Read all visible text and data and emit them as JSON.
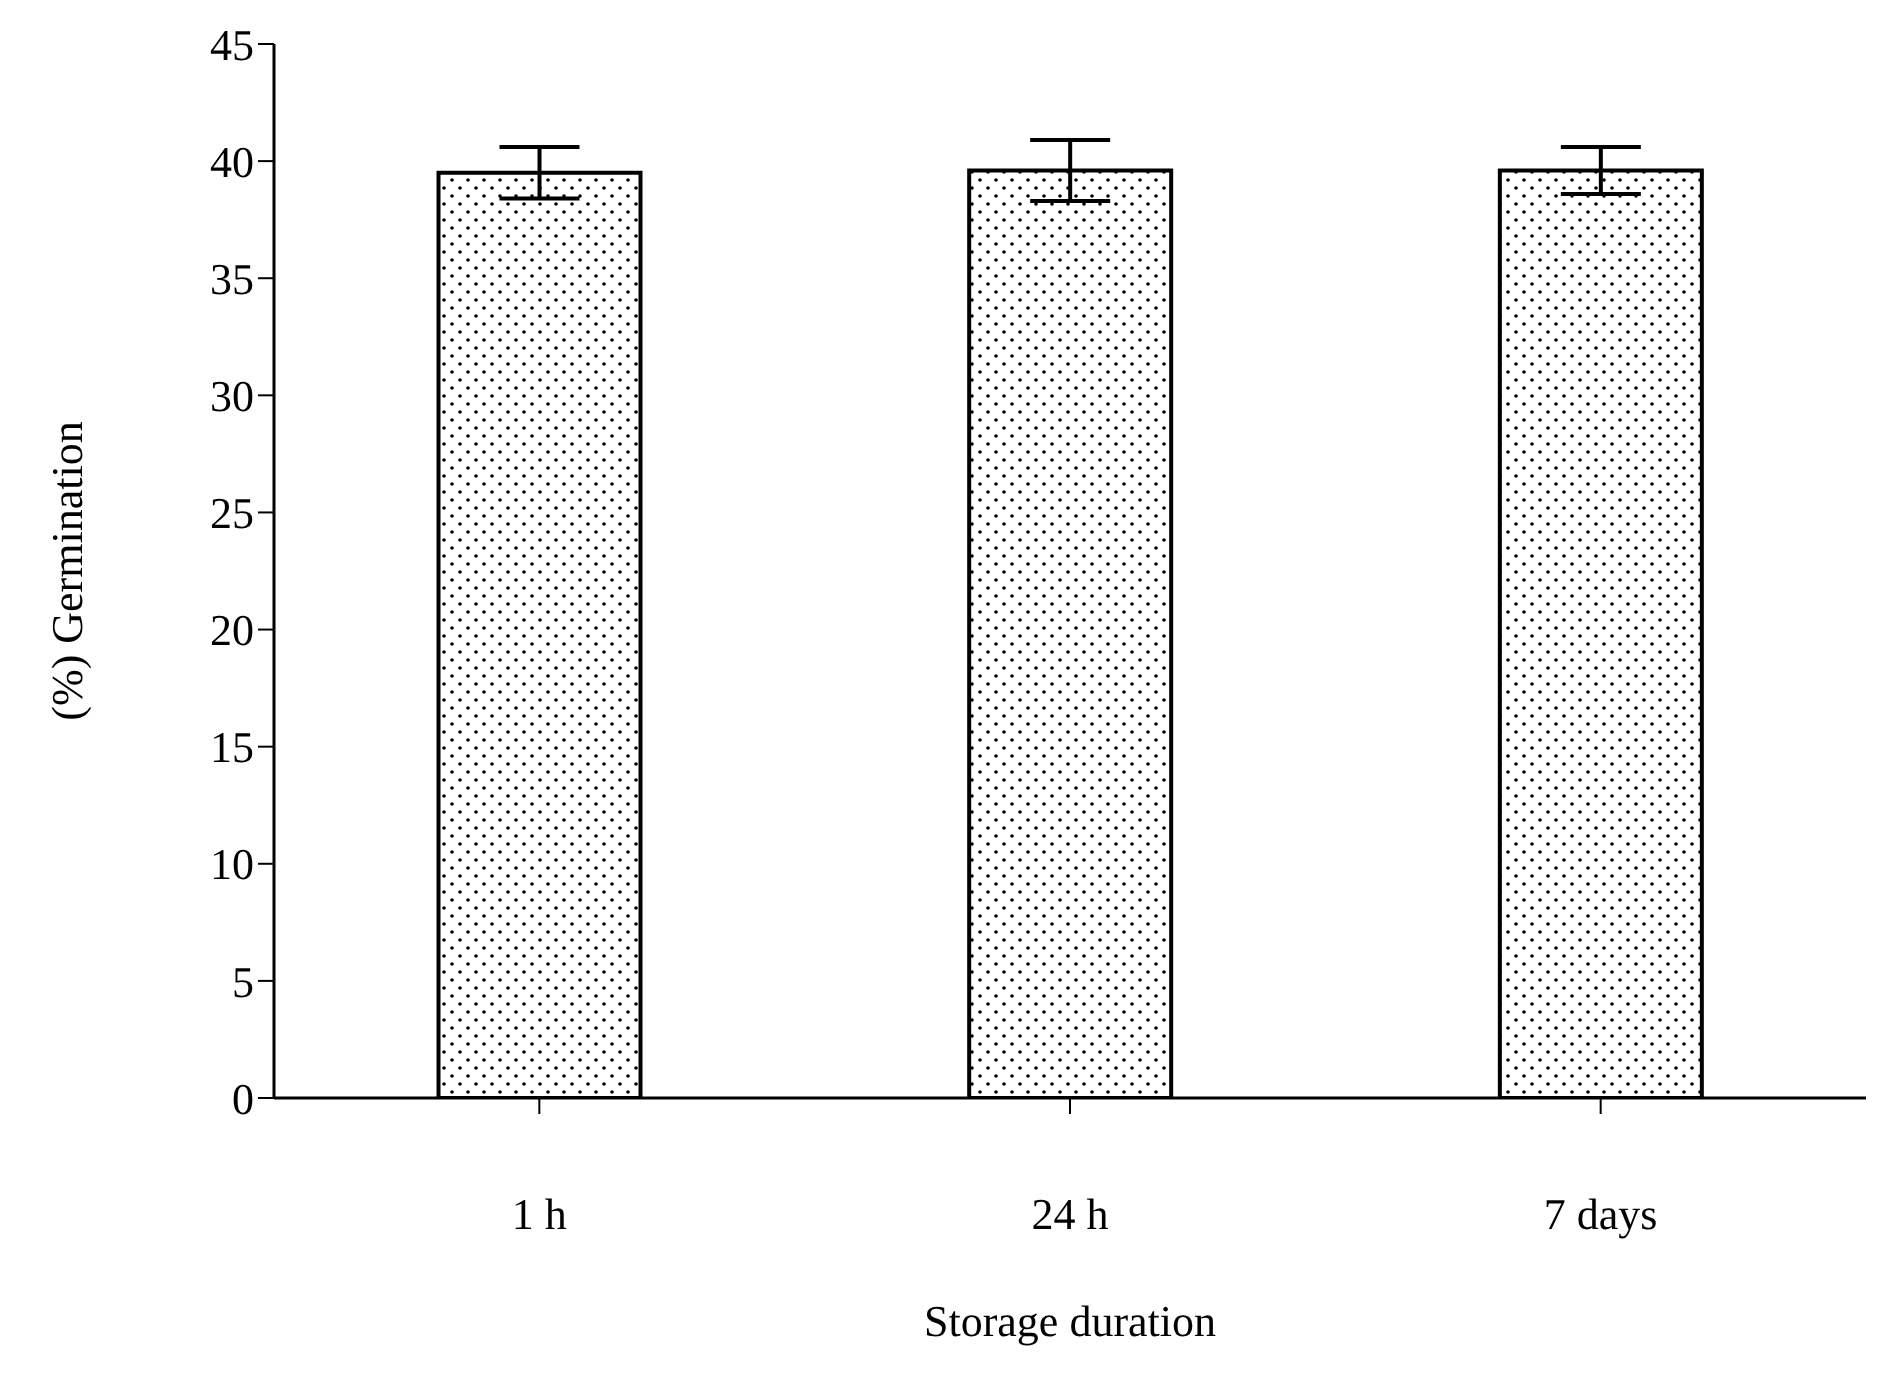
{
  "chart_data": {
    "type": "bar",
    "xlabel": "Storage duration",
    "ylabel": "(%) Germination",
    "categories": [
      "1 h",
      "24 h",
      "7 days"
    ],
    "values": [
      39.5,
      39.6,
      39.6
    ],
    "errors": [
      1.1,
      1.3,
      1.0
    ],
    "color": "#000000",
    "ylim": [
      0,
      45
    ],
    "yticks": [
      0,
      5,
      10,
      15,
      20,
      25,
      30,
      35,
      40,
      45
    ],
    "grid": false
  }
}
